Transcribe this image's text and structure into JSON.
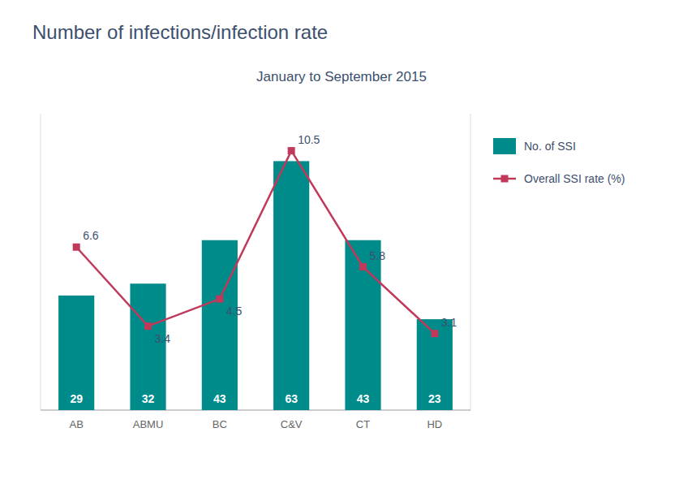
{
  "chart_data": {
    "type": "bar",
    "title": "Number of infections/infection rate",
    "subtitle": "January to September 2015",
    "categories": [
      "AB",
      "ABMU",
      "BC",
      "C&V",
      "CT",
      "HD"
    ],
    "series": [
      {
        "name": "No. of SSI",
        "type": "bar",
        "color": "#008B8B",
        "values": [
          29,
          32,
          43,
          63,
          43,
          23
        ]
      },
      {
        "name": "Overall SSI rate (%)",
        "type": "line",
        "axis": "y2",
        "color": "#c0395a",
        "marker": "square",
        "values": [
          6.6,
          3.4,
          4.5,
          10.5,
          5.8,
          3.1
        ]
      }
    ],
    "ylim": [
      0,
      75
    ],
    "y2lim": [
      0,
      12
    ],
    "tick_labels": "x",
    "data_labels": true,
    "legend": "right",
    "grid": false
  }
}
